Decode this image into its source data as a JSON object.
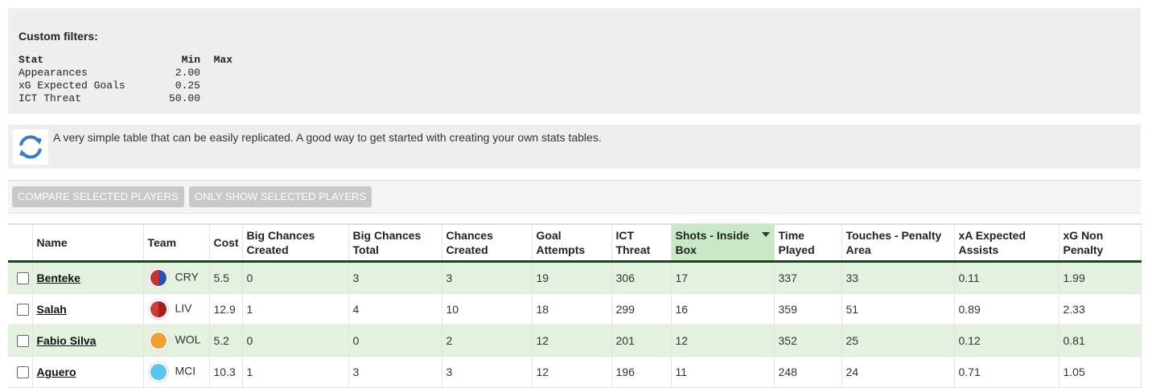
{
  "filters": {
    "title": "Custom filters:",
    "header": [
      "Stat",
      "Min",
      "Max"
    ],
    "rows": [
      [
        "Appearances",
        "2.00"
      ],
      [
        "xG Expected Goals",
        "0.25"
      ],
      [
        "ICT Threat",
        "50.00"
      ]
    ]
  },
  "description": "A very simple table that can be easily replicated. A good way to get started with creating your own stats tables.",
  "buttons": [
    "COMPARE SELECTED PLAYERS",
    "ONLY SHOW SELECTED PLAYERS"
  ],
  "table": {
    "columns": [
      "Name",
      "Team",
      "Cost",
      "Big Chances Created",
      "Big Chances Total",
      "Chances Created",
      "Goal Attempts",
      "ICT Threat",
      "Shots - Inside Box",
      "Time Played",
      "Touches - Penalty Area",
      "xA Expected Assists",
      "xG Non Penalty"
    ],
    "rows": [
      [
        "Benteke",
        "CRY",
        "5.5",
        "0",
        "3",
        "3",
        "19",
        "306",
        "17",
        "337",
        "33",
        "0.11",
        "1.99"
      ],
      [
        "Salah",
        "LIV",
        "12.9",
        "1",
        "4",
        "10",
        "18",
        "299",
        "16",
        "359",
        "51",
        "0.89",
        "2.33"
      ],
      [
        "Fabio Silva",
        "WOL",
        "5.2",
        "0",
        "0",
        "2",
        "12",
        "201",
        "12",
        "352",
        "25",
        "0.12",
        "0.81"
      ],
      [
        "Aguero",
        "MCI",
        "10.3",
        "1",
        "3",
        "3",
        "12",
        "196",
        "11",
        "248",
        "24",
        "0.71",
        "1.05"
      ]
    ]
  }
}
